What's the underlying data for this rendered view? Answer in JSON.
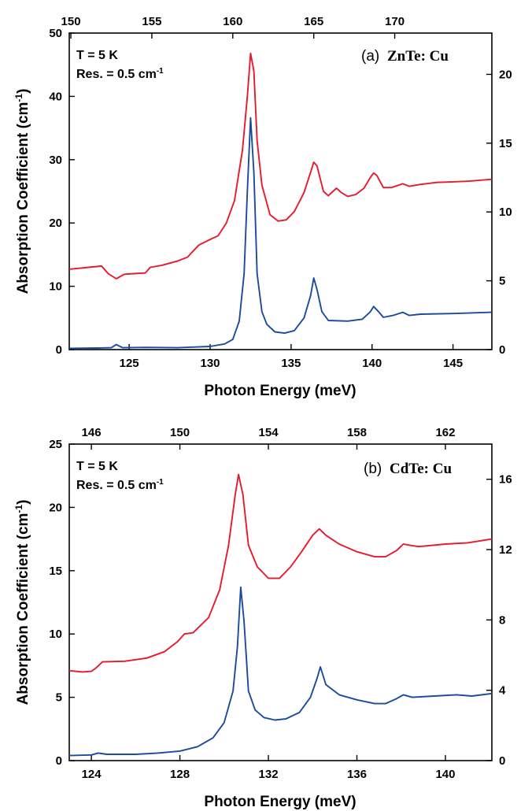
{
  "chart_data": [
    {
      "type": "line",
      "panel_label": "(a)",
      "material": "ZnTe: Cu",
      "annotation_temp": "T = 5 K",
      "annotation_res_prefix": "Res. = 0.5 cm",
      "annotation_res_sup": "-1",
      "xlabel": "Photon Energy (meV)",
      "ylabel": "Absorption Coefficient (cm",
      "ylabel_sup": "-1",
      "ylabel_suffix": ")",
      "xlim": [
        121.3,
        147.4
      ],
      "ylim_left": [
        0,
        50
      ],
      "ylim_right": [
        0,
        23
      ],
      "bottom_ticks": [
        125,
        130,
        135,
        140,
        145
      ],
      "top_ticks": [
        150,
        155,
        160,
        165,
        170
      ],
      "left_ticks": [
        0,
        10,
        20,
        30,
        40,
        50
      ],
      "right_ticks": [
        0,
        5,
        10,
        15,
        20
      ],
      "series": [
        {
          "color": "#e8192c",
          "axis": "left",
          "points": [
            [
              121.3,
              12.7
            ],
            [
              122.5,
              13.0
            ],
            [
              123.3,
              13.2
            ],
            [
              123.7,
              12.0
            ],
            [
              124.2,
              11.2
            ],
            [
              124.7,
              11.9
            ],
            [
              125.3,
              12.0
            ],
            [
              126.0,
              12.1
            ],
            [
              126.3,
              13.0
            ],
            [
              127.0,
              13.3
            ],
            [
              128.0,
              14.0
            ],
            [
              128.6,
              14.6
            ],
            [
              129.3,
              16.5
            ],
            [
              130.0,
              17.4
            ],
            [
              130.5,
              18.0
            ],
            [
              131.0,
              20.0
            ],
            [
              131.5,
              23.5
            ],
            [
              132.0,
              31.5
            ],
            [
              132.3,
              40.0
            ],
            [
              132.5,
              46.8
            ],
            [
              132.7,
              44.0
            ],
            [
              132.9,
              33.0
            ],
            [
              133.2,
              26.0
            ],
            [
              133.7,
              21.3
            ],
            [
              134.2,
              20.3
            ],
            [
              134.7,
              20.5
            ],
            [
              135.2,
              21.8
            ],
            [
              135.8,
              24.8
            ],
            [
              136.2,
              28.0
            ],
            [
              136.4,
              29.6
            ],
            [
              136.6,
              29.0
            ],
            [
              137.0,
              25.0
            ],
            [
              137.3,
              24.3
            ],
            [
              137.8,
              25.5
            ],
            [
              138.1,
              24.8
            ],
            [
              138.5,
              24.2
            ],
            [
              139.0,
              24.5
            ],
            [
              139.5,
              25.5
            ],
            [
              139.9,
              27.2
            ],
            [
              140.1,
              27.9
            ],
            [
              140.3,
              27.5
            ],
            [
              140.7,
              25.6
            ],
            [
              141.2,
              25.6
            ],
            [
              141.9,
              26.2
            ],
            [
              142.3,
              25.8
            ],
            [
              143.0,
              26.1
            ],
            [
              144.0,
              26.4
            ],
            [
              145.0,
              26.5
            ],
            [
              146.0,
              26.6
            ],
            [
              147.4,
              26.9
            ]
          ]
        },
        {
          "color": "#1a4b9c",
          "axis": "left",
          "points": [
            [
              121.3,
              0.2
            ],
            [
              123.0,
              0.25
            ],
            [
              123.9,
              0.3
            ],
            [
              124.2,
              0.8
            ],
            [
              124.6,
              0.3
            ],
            [
              126.0,
              0.35
            ],
            [
              128.0,
              0.3
            ],
            [
              130.0,
              0.5
            ],
            [
              130.9,
              0.9
            ],
            [
              131.4,
              1.6
            ],
            [
              131.8,
              4.5
            ],
            [
              132.1,
              12.0
            ],
            [
              132.3,
              25.0
            ],
            [
              132.5,
              36.6
            ],
            [
              132.7,
              28.0
            ],
            [
              132.9,
              12.0
            ],
            [
              133.2,
              6.0
            ],
            [
              133.5,
              4.0
            ],
            [
              134.0,
              2.8
            ],
            [
              134.6,
              2.6
            ],
            [
              135.2,
              3.0
            ],
            [
              135.8,
              5.0
            ],
            [
              136.2,
              8.5
            ],
            [
              136.4,
              11.3
            ],
            [
              136.6,
              9.5
            ],
            [
              136.9,
              6.0
            ],
            [
              137.3,
              4.6
            ],
            [
              138.5,
              4.5
            ],
            [
              139.4,
              4.8
            ],
            [
              139.9,
              6.0
            ],
            [
              140.1,
              6.8
            ],
            [
              140.4,
              6.0
            ],
            [
              140.7,
              5.1
            ],
            [
              141.3,
              5.4
            ],
            [
              141.9,
              5.9
            ],
            [
              142.3,
              5.4
            ],
            [
              143.0,
              5.6
            ],
            [
              145.0,
              5.7
            ],
            [
              147.4,
              5.9
            ]
          ]
        }
      ]
    },
    {
      "type": "line",
      "panel_label": "(b)",
      "material": "CdTe: Cu",
      "annotation_temp": "T = 5 K",
      "annotation_res_prefix": "Res. = 0.5 cm",
      "annotation_res_sup": "-1",
      "xlabel": "Photon Energy (meV)",
      "ylabel": "Absorption Coefficient (cm",
      "ylabel_sup": "-1",
      "ylabel_suffix": ")",
      "xlim": [
        123,
        142.1
      ],
      "ylim_left": [
        0,
        25
      ],
      "ylim_right": [
        0,
        18
      ],
      "bottom_ticks": [
        124,
        128,
        132,
        136,
        140
      ],
      "top_ticks": [
        146,
        150,
        154,
        158,
        162
      ],
      "left_ticks": [
        0,
        5,
        10,
        15,
        20,
        25
      ],
      "right_ticks": [
        0,
        4,
        8,
        12,
        16
      ],
      "series": [
        {
          "color": "#e8192c",
          "axis": "left",
          "points": [
            [
              123.0,
              7.1
            ],
            [
              123.6,
              7.0
            ],
            [
              124.0,
              7.05
            ],
            [
              124.2,
              7.3
            ],
            [
              124.5,
              7.8
            ],
            [
              125.5,
              7.85
            ],
            [
              126.5,
              8.1
            ],
            [
              127.3,
              8.6
            ],
            [
              127.9,
              9.4
            ],
            [
              128.2,
              10.0
            ],
            [
              128.6,
              10.1
            ],
            [
              129.3,
              11.3
            ],
            [
              129.8,
              13.5
            ],
            [
              130.2,
              17.0
            ],
            [
              130.5,
              21.0
            ],
            [
              130.65,
              22.6
            ],
            [
              130.85,
              21.0
            ],
            [
              131.1,
              17.0
            ],
            [
              131.5,
              15.3
            ],
            [
              132.0,
              14.4
            ],
            [
              132.5,
              14.4
            ],
            [
              133.0,
              15.3
            ],
            [
              133.5,
              16.5
            ],
            [
              134.0,
              17.8
            ],
            [
              134.3,
              18.3
            ],
            [
              134.6,
              17.8
            ],
            [
              135.2,
              17.1
            ],
            [
              136.0,
              16.5
            ],
            [
              136.8,
              16.1
            ],
            [
              137.3,
              16.1
            ],
            [
              137.8,
              16.6
            ],
            [
              138.1,
              17.1
            ],
            [
              138.4,
              17.0
            ],
            [
              138.8,
              16.9
            ],
            [
              140.0,
              17.1
            ],
            [
              141.0,
              17.2
            ],
            [
              142.1,
              17.5
            ]
          ]
        },
        {
          "color": "#1a4b9c",
          "axis": "left",
          "points": [
            [
              123.0,
              0.4
            ],
            [
              124.0,
              0.45
            ],
            [
              124.3,
              0.6
            ],
            [
              124.7,
              0.5
            ],
            [
              126.0,
              0.5
            ],
            [
              127.0,
              0.6
            ],
            [
              128.0,
              0.75
            ],
            [
              128.8,
              1.1
            ],
            [
              129.5,
              1.8
            ],
            [
              130.0,
              3.0
            ],
            [
              130.4,
              5.5
            ],
            [
              130.6,
              9.0
            ],
            [
              130.75,
              13.7
            ],
            [
              130.9,
              11.0
            ],
            [
              131.1,
              5.5
            ],
            [
              131.4,
              4.0
            ],
            [
              131.8,
              3.4
            ],
            [
              132.3,
              3.2
            ],
            [
              132.8,
              3.3
            ],
            [
              133.4,
              3.8
            ],
            [
              133.9,
              5.0
            ],
            [
              134.2,
              6.5
            ],
            [
              134.35,
              7.4
            ],
            [
              134.6,
              6.0
            ],
            [
              135.2,
              5.2
            ],
            [
              136.0,
              4.8
            ],
            [
              136.8,
              4.5
            ],
            [
              137.3,
              4.5
            ],
            [
              137.8,
              4.9
            ],
            [
              138.1,
              5.2
            ],
            [
              138.5,
              5.0
            ],
            [
              139.5,
              5.1
            ],
            [
              140.5,
              5.2
            ],
            [
              141.2,
              5.1
            ],
            [
              142.1,
              5.3
            ]
          ]
        }
      ]
    }
  ]
}
